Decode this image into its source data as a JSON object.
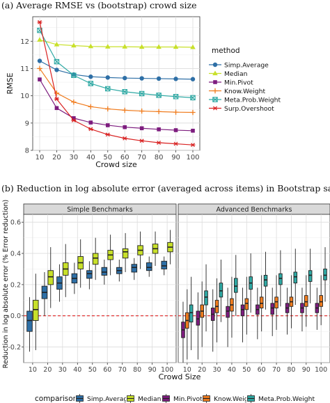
{
  "chart_data": [
    {
      "type": "line",
      "title": "(a) Average RMSE vs (bootstrap) crowd size",
      "xlabel": "Crowd size",
      "ylabel": "RMSE",
      "x": [
        10,
        20,
        30,
        40,
        50,
        60,
        70,
        80,
        90,
        100
      ],
      "xlim": [
        10,
        100
      ],
      "ylim": [
        8,
        12.9
      ],
      "yticks": [
        8,
        9,
        10,
        11,
        12
      ],
      "legend_title": "method",
      "legend_position": "right",
      "grid": true,
      "series": [
        {
          "name": "Simp.Average",
          "color": "#2e6fa6",
          "marker": "circle",
          "values": [
            11.28,
            10.95,
            10.78,
            10.7,
            10.67,
            10.65,
            10.64,
            10.63,
            10.62,
            10.61
          ]
        },
        {
          "name": "Median",
          "color": "#c8e02a",
          "marker": "triangle",
          "values": [
            12.05,
            11.88,
            11.84,
            11.81,
            11.8,
            11.8,
            11.79,
            11.79,
            11.79,
            11.78
          ]
        },
        {
          "name": "Min.Pivot",
          "color": "#7d1c7e",
          "marker": "square",
          "values": [
            10.6,
            9.55,
            9.18,
            9.02,
            8.92,
            8.85,
            8.81,
            8.77,
            8.74,
            8.72
          ]
        },
        {
          "name": "Know.Weight",
          "color": "#f07c1e",
          "marker": "plus",
          "values": [
            11.0,
            10.1,
            9.77,
            9.6,
            9.52,
            9.47,
            9.44,
            9.42,
            9.4,
            9.39
          ]
        },
        {
          "name": "Meta.Prob.Weight",
          "color": "#2fa9a4",
          "marker": "squarecross",
          "values": [
            12.4,
            11.25,
            10.75,
            10.45,
            10.26,
            10.15,
            10.08,
            10.02,
            9.97,
            9.93
          ]
        },
        {
          "name": "Surp.Overshoot",
          "color": "#d92020",
          "marker": "asterisk",
          "values": [
            12.7,
            9.88,
            9.1,
            8.78,
            8.58,
            8.44,
            8.35,
            8.28,
            8.24,
            8.2
          ]
        }
      ]
    },
    {
      "type": "box",
      "title": "(b) Reduction in log absolute error (averaged across items) in Bootstrap samples",
      "xlabel": "Crowd Size",
      "ylabel": "Reduction in log absolute error (% Error reduction)",
      "categories": [
        10,
        20,
        30,
        40,
        50,
        60,
        70,
        80,
        90,
        100
      ],
      "ylim": [
        -0.3,
        0.65
      ],
      "yticks": [
        -0.2,
        0.0,
        0.2,
        0.4,
        0.6
      ],
      "reference_line": 0.0,
      "legend_title": "comparison",
      "legend_position": "bottom",
      "panels": [
        {
          "name": "Simple Benchmarks",
          "series": [
            {
              "name": "Simp.Average",
              "color": "#2e6fa6",
              "boxes": [
                {
                  "low": -0.23,
                  "q1": -0.1,
                  "median": -0.03,
                  "q3": 0.03,
                  "high": 0.12
                },
                {
                  "low": 0.0,
                  "q1": 0.11,
                  "median": 0.15,
                  "q3": 0.19,
                  "high": 0.28
                },
                {
                  "low": 0.09,
                  "q1": 0.17,
                  "median": 0.21,
                  "q3": 0.25,
                  "high": 0.33
                },
                {
                  "low": 0.14,
                  "q1": 0.21,
                  "median": 0.24,
                  "q3": 0.27,
                  "high": 0.34
                },
                {
                  "low": 0.17,
                  "q1": 0.24,
                  "median": 0.27,
                  "q3": 0.29,
                  "high": 0.35
                },
                {
                  "low": 0.2,
                  "q1": 0.26,
                  "median": 0.28,
                  "q3": 0.31,
                  "high": 0.36
                },
                {
                  "low": 0.22,
                  "q1": 0.27,
                  "median": 0.29,
                  "q3": 0.31,
                  "high": 0.36
                },
                {
                  "low": 0.23,
                  "q1": 0.28,
                  "median": 0.31,
                  "q3": 0.33,
                  "high": 0.37
                },
                {
                  "low": 0.25,
                  "q1": 0.29,
                  "median": 0.31,
                  "q3": 0.34,
                  "high": 0.38
                },
                {
                  "low": 0.26,
                  "q1": 0.3,
                  "median": 0.32,
                  "q3": 0.35,
                  "high": 0.38
                }
              ]
            },
            {
              "name": "Median",
              "color": "#c8e02a",
              "boxes": [
                {
                  "low": -0.22,
                  "q1": -0.03,
                  "median": 0.04,
                  "q3": 0.1,
                  "high": 0.27
                },
                {
                  "low": 0.05,
                  "q1": 0.2,
                  "median": 0.25,
                  "q3": 0.29,
                  "high": 0.44
                },
                {
                  "low": 0.12,
                  "q1": 0.26,
                  "median": 0.3,
                  "q3": 0.34,
                  "high": 0.46
                },
                {
                  "low": 0.18,
                  "q1": 0.3,
                  "median": 0.34,
                  "q3": 0.38,
                  "high": 0.49
                },
                {
                  "low": 0.23,
                  "q1": 0.33,
                  "median": 0.37,
                  "q3": 0.4,
                  "high": 0.5
                },
                {
                  "low": 0.26,
                  "q1": 0.36,
                  "median": 0.39,
                  "q3": 0.42,
                  "high": 0.52
                },
                {
                  "low": 0.28,
                  "q1": 0.37,
                  "median": 0.41,
                  "q3": 0.43,
                  "high": 0.53
                },
                {
                  "low": 0.3,
                  "q1": 0.39,
                  "median": 0.42,
                  "q3": 0.45,
                  "high": 0.54
                },
                {
                  "low": 0.32,
                  "q1": 0.4,
                  "median": 0.43,
                  "q3": 0.46,
                  "high": 0.54
                },
                {
                  "low": 0.33,
                  "q1": 0.41,
                  "median": 0.44,
                  "q3": 0.47,
                  "high": 0.55
                }
              ]
            }
          ]
        },
        {
          "name": "Advanced Benchmarks",
          "series": [
            {
              "name": "Min.Pivot",
              "color": "#7d1c7e",
              "boxes": [
                {
                  "low": -0.3,
                  "q1": -0.14,
                  "median": -0.09,
                  "q3": -0.04,
                  "high": 0.09
                },
                {
                  "low": -0.28,
                  "q1": -0.06,
                  "median": -0.02,
                  "q3": 0.03,
                  "high": 0.15
                },
                {
                  "low": -0.23,
                  "q1": -0.03,
                  "median": 0.01,
                  "q3": 0.05,
                  "high": 0.17
                },
                {
                  "low": -0.2,
                  "q1": -0.01,
                  "median": 0.03,
                  "q3": 0.06,
                  "high": 0.18
                },
                {
                  "low": -0.17,
                  "q1": 0.0,
                  "median": 0.04,
                  "q3": 0.07,
                  "high": 0.18
                },
                {
                  "low": -0.15,
                  "q1": 0.01,
                  "median": 0.04,
                  "q3": 0.07,
                  "high": 0.18
                },
                {
                  "low": -0.13,
                  "q1": 0.01,
                  "median": 0.05,
                  "q3": 0.08,
                  "high": 0.18
                },
                {
                  "low": -0.12,
                  "q1": 0.02,
                  "median": 0.05,
                  "q3": 0.08,
                  "high": 0.18
                },
                {
                  "low": -0.1,
                  "q1": 0.02,
                  "median": 0.05,
                  "q3": 0.08,
                  "high": 0.18
                },
                {
                  "low": -0.09,
                  "q1": 0.02,
                  "median": 0.05,
                  "q3": 0.08,
                  "high": 0.18
                }
              ]
            },
            {
              "name": "Know.Weight",
              "color": "#f07c1e",
              "boxes": [
                {
                  "low": -0.28,
                  "q1": -0.08,
                  "median": -0.03,
                  "q3": 0.02,
                  "high": 0.17
                },
                {
                  "low": -0.2,
                  "q1": -0.01,
                  "median": 0.03,
                  "q3": 0.07,
                  "high": 0.22
                },
                {
                  "low": -0.17,
                  "q1": 0.02,
                  "median": 0.06,
                  "q3": 0.1,
                  "high": 0.24
                },
                {
                  "low": -0.14,
                  "q1": 0.03,
                  "median": 0.07,
                  "q3": 0.11,
                  "high": 0.25
                },
                {
                  "low": -0.12,
                  "q1": 0.04,
                  "median": 0.08,
                  "q3": 0.11,
                  "high": 0.25
                },
                {
                  "low": -0.1,
                  "q1": 0.05,
                  "median": 0.08,
                  "q3": 0.12,
                  "high": 0.26
                },
                {
                  "low": -0.09,
                  "q1": 0.05,
                  "median": 0.09,
                  "q3": 0.12,
                  "high": 0.26
                },
                {
                  "low": -0.08,
                  "q1": 0.06,
                  "median": 0.09,
                  "q3": 0.12,
                  "high": 0.26
                },
                {
                  "low": -0.07,
                  "q1": 0.06,
                  "median": 0.09,
                  "q3": 0.13,
                  "high": 0.26
                },
                {
                  "low": -0.06,
                  "q1": 0.06,
                  "median": 0.09,
                  "q3": 0.13,
                  "high": 0.26
                }
              ]
            },
            {
              "name": "Meta.Prob.Weight",
              "color": "#2fa9a4",
              "boxes": [
                {
                  "low": -0.22,
                  "q1": -0.04,
                  "median": 0.02,
                  "q3": 0.07,
                  "high": 0.25
                },
                {
                  "low": -0.1,
                  "q1": 0.07,
                  "median": 0.12,
                  "q3": 0.16,
                  "high": 0.33
                },
                {
                  "low": -0.04,
                  "q1": 0.12,
                  "median": 0.16,
                  "q3": 0.21,
                  "high": 0.36
                },
                {
                  "low": 0.0,
                  "q1": 0.15,
                  "median": 0.19,
                  "q3": 0.24,
                  "high": 0.39
                },
                {
                  "low": 0.02,
                  "q1": 0.17,
                  "median": 0.21,
                  "q3": 0.25,
                  "high": 0.4
                },
                {
                  "low": 0.04,
                  "q1": 0.19,
                  "median": 0.23,
                  "q3": 0.26,
                  "high": 0.41
                },
                {
                  "low": 0.06,
                  "q1": 0.2,
                  "median": 0.24,
                  "q3": 0.27,
                  "high": 0.42
                },
                {
                  "low": 0.07,
                  "q1": 0.21,
                  "median": 0.25,
                  "q3": 0.28,
                  "high": 0.43
                },
                {
                  "low": 0.08,
                  "q1": 0.22,
                  "median": 0.26,
                  "q3": 0.29,
                  "high": 0.43
                },
                {
                  "low": 0.09,
                  "q1": 0.23,
                  "median": 0.26,
                  "q3": 0.3,
                  "high": 0.44
                }
              ]
            }
          ]
        }
      ]
    }
  ]
}
